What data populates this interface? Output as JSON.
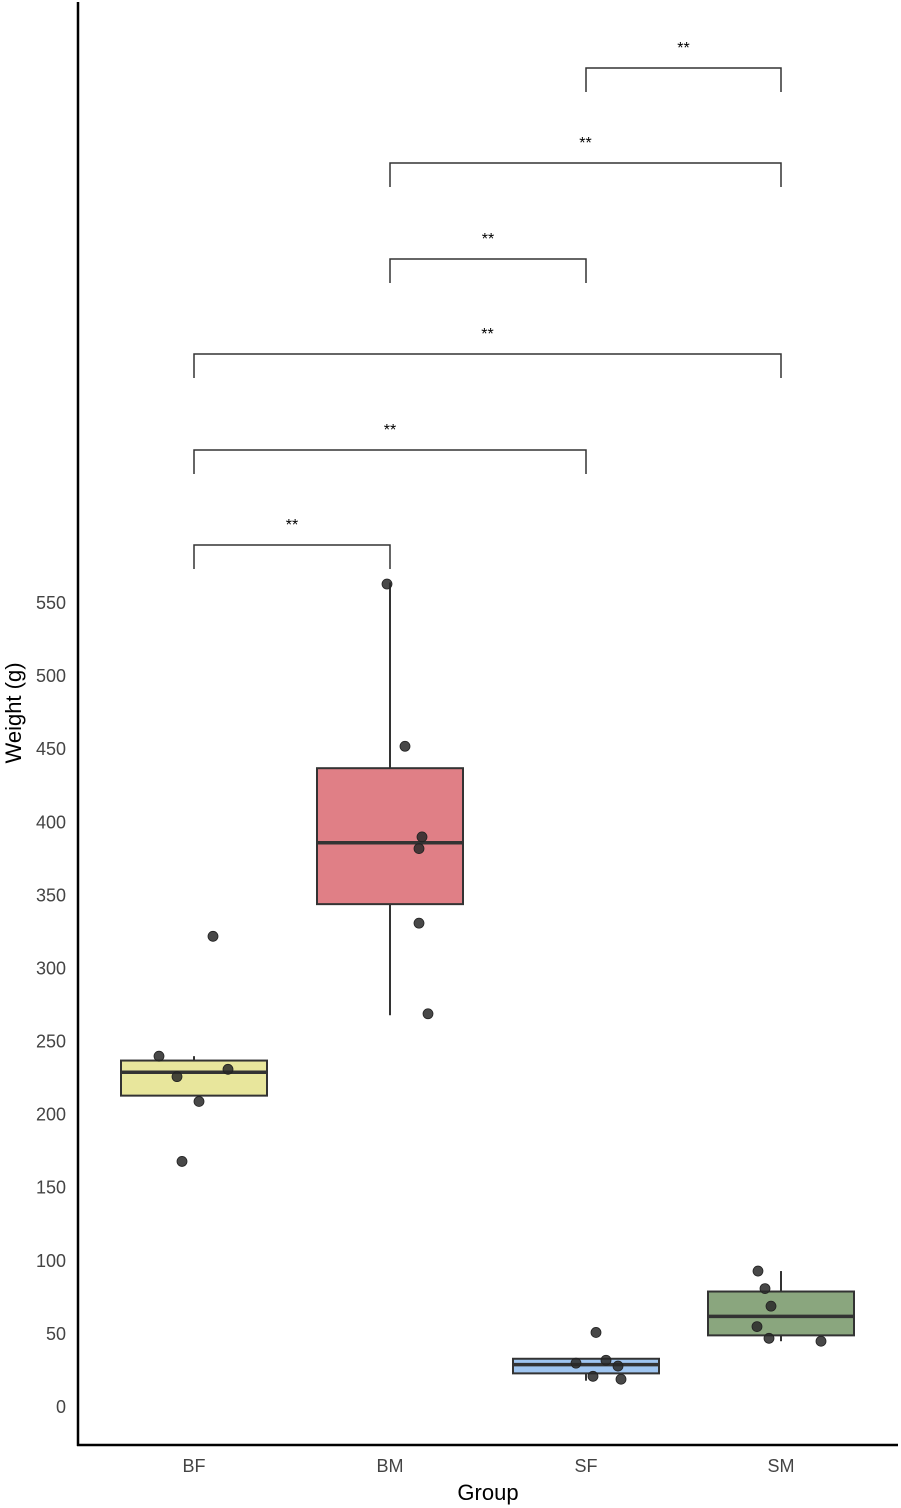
{
  "chart_data": {
    "type": "boxplot",
    "title": "",
    "xlabel": "Group",
    "ylabel": "Weight (g)",
    "categories": [
      "BF",
      "BM",
      "SF",
      "SM"
    ],
    "y_ticks": [
      0,
      50,
      100,
      150,
      200,
      250,
      300,
      350,
      400,
      450,
      500,
      550
    ],
    "ylim": [
      -25,
      1000
    ],
    "grid": false,
    "legend": "none",
    "colors": {
      "BF": "#e8e69c",
      "BM": "#e07f86",
      "SF": "#9fc5f0",
      "SM": "#8aa67e"
    },
    "boxes": [
      {
        "group": "BF",
        "q1": 213,
        "median": 229,
        "q3": 237,
        "whisker_low": 213,
        "whisker_high": 240
      },
      {
        "group": "BM",
        "q1": 344,
        "median": 386,
        "q3": 437,
        "whisker_low": 268,
        "whisker_high": 564
      },
      {
        "group": "SF",
        "q1": 23,
        "median": 29,
        "q3": 33,
        "whisker_low": 18,
        "whisker_high": 33
      },
      {
        "group": "SM",
        "q1": 49,
        "median": 62,
        "q3": 79,
        "whisker_low": 45,
        "whisker_high": 93
      }
    ],
    "points": [
      {
        "group": "BF",
        "values": [
          240,
          226,
          231,
          209,
          168,
          322
        ],
        "jitter": [
          -35,
          -17,
          34,
          5,
          -12,
          19
        ]
      },
      {
        "group": "BM",
        "values": [
          563,
          452,
          390,
          382,
          331,
          269
        ],
        "jitter": [
          -3,
          15,
          32,
          29,
          29,
          38
        ]
      },
      {
        "group": "SF",
        "values": [
          51,
          30,
          32,
          28,
          21,
          19
        ],
        "jitter": [
          10,
          -10,
          20,
          32,
          7,
          35
        ]
      },
      {
        "group": "SM",
        "values": [
          93,
          81,
          69,
          55,
          47,
          45
        ],
        "jitter": [
          -23,
          -16,
          -10,
          -24,
          -12,
          40
        ]
      }
    ],
    "significance": [
      {
        "from": "BF",
        "to": "BM",
        "label": "**",
        "level": 0
      },
      {
        "from": "BF",
        "to": "SF",
        "label": "**",
        "level": 1
      },
      {
        "from": "BF",
        "to": "SM",
        "label": "**",
        "level": 2
      },
      {
        "from": "BM",
        "to": "SF",
        "label": "**",
        "level": 3
      },
      {
        "from": "BM",
        "to": "SM",
        "label": "**",
        "level": 4
      },
      {
        "from": "SF",
        "to": "SM",
        "label": "**",
        "level": 5
      }
    ]
  }
}
